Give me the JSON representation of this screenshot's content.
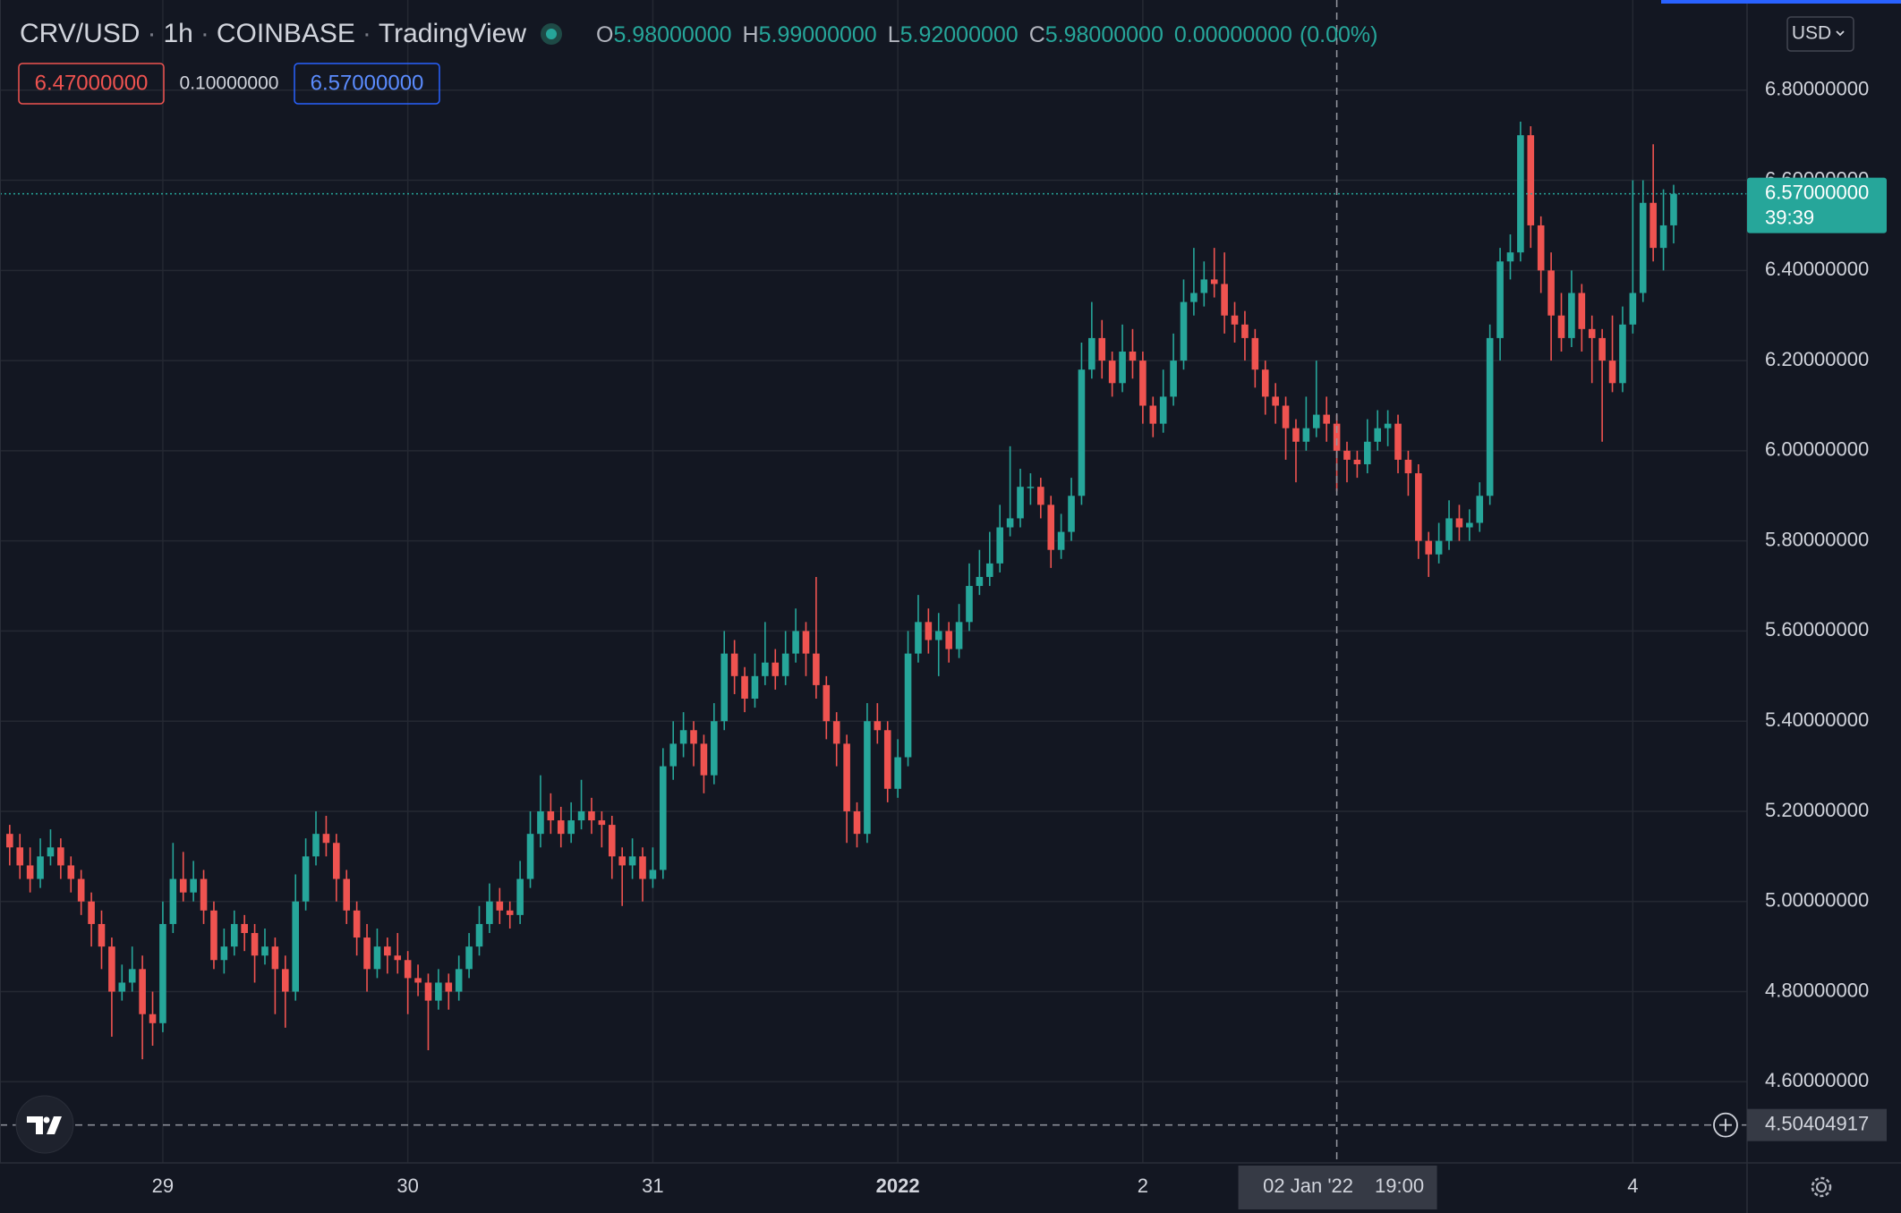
{
  "header": {
    "symbol": "CRV/USD",
    "interval": "1h",
    "exchange": "COINBASE",
    "source": "TradingView",
    "separator": "·",
    "ohlc": {
      "open_label": "O",
      "open": "5.98000000",
      "high_label": "H",
      "high": "5.99000000",
      "low_label": "L",
      "low": "5.92000000",
      "close_label": "C",
      "close": "5.98000000",
      "change": "0.00000000",
      "change_pct": "(0.00%)"
    },
    "sell": "6.47000000",
    "spread": "0.10000000",
    "buy": "6.57000000",
    "currency": "USD"
  },
  "chart_data": {
    "type": "candlestick",
    "ylim": [
      4.42,
      7.0
    ],
    "yticks": [
      {
        "value": 4.6,
        "label": "4.60000000"
      },
      {
        "value": 4.8,
        "label": "4.80000000"
      },
      {
        "value": 5.0,
        "label": "5.00000000"
      },
      {
        "value": 5.2,
        "label": "5.20000000"
      },
      {
        "value": 5.4,
        "label": "5.40000000"
      },
      {
        "value": 5.6,
        "label": "5.60000000"
      },
      {
        "value": 5.8,
        "label": "5.80000000"
      },
      {
        "value": 6.0,
        "label": "6.00000000"
      },
      {
        "value": 6.2,
        "label": "6.20000000"
      },
      {
        "value": 6.4,
        "label": "6.40000000"
      },
      {
        "value": 6.6,
        "label": "6.60000000"
      },
      {
        "value": 6.8,
        "label": "6.80000000"
      }
    ],
    "grid": true,
    "up_color": "#26a69a",
    "down_color": "#ef5350",
    "last_price": {
      "value": 6.57,
      "label": "6.57000000"
    },
    "countdown": "39:39",
    "crosshair_price": 4.50404917,
    "crosshair_date": "02 Jan '22",
    "crosshair_time": "19:00",
    "categories": [
      null,
      null,
      null,
      null,
      null,
      null,
      null,
      null,
      null,
      null,
      null,
      null,
      null,
      null,
      null,
      "29",
      null,
      null,
      null,
      null,
      null,
      null,
      null,
      null,
      null,
      null,
      null,
      null,
      null,
      null,
      null,
      null,
      null,
      null,
      null,
      null,
      null,
      null,
      null,
      "30",
      null,
      null,
      null,
      null,
      null,
      null,
      null,
      null,
      null,
      null,
      null,
      null,
      null,
      null,
      null,
      null,
      null,
      null,
      null,
      null,
      null,
      null,
      null,
      "31",
      null,
      null,
      null,
      null,
      null,
      null,
      null,
      null,
      null,
      null,
      null,
      null,
      null,
      null,
      null,
      null,
      null,
      null,
      null,
      null,
      null,
      null,
      null,
      "2022",
      null,
      null,
      null,
      null,
      null,
      null,
      null,
      null,
      null,
      null,
      null,
      null,
      null,
      null,
      null,
      null,
      null,
      null,
      null,
      null,
      null,
      null,
      null,
      "2",
      null,
      null,
      null,
      null,
      null,
      null,
      null,
      null,
      null,
      null,
      null,
      null,
      null,
      null,
      null,
      null,
      null,
      null,
      null,
      null,
      null,
      null,
      null,
      null,
      null,
      null,
      null,
      null,
      null,
      null,
      null,
      null,
      null,
      null,
      null,
      null,
      null,
      null,
      null,
      null,
      null,
      null,
      null,
      null,
      null,
      null,
      null,
      "4",
      null,
      null,
      null,
      null
    ],
    "candles": [
      [
        5.15,
        5.17,
        5.08,
        5.12
      ],
      [
        5.12,
        5.15,
        5.05,
        5.08
      ],
      [
        5.08,
        5.12,
        5.02,
        5.05
      ],
      [
        5.05,
        5.14,
        5.03,
        5.1
      ],
      [
        5.1,
        5.16,
        5.08,
        5.12
      ],
      [
        5.12,
        5.14,
        5.05,
        5.08
      ],
      [
        5.08,
        5.1,
        5.02,
        5.05
      ],
      [
        5.05,
        5.07,
        4.97,
        5.0
      ],
      [
        5.0,
        5.02,
        4.9,
        4.95
      ],
      [
        4.95,
        4.98,
        4.85,
        4.9
      ],
      [
        4.9,
        4.92,
        4.7,
        4.8
      ],
      [
        4.8,
        4.86,
        4.78,
        4.82
      ],
      [
        4.82,
        4.9,
        4.8,
        4.85
      ],
      [
        4.85,
        4.88,
        4.65,
        4.75
      ],
      [
        4.75,
        4.8,
        4.68,
        4.73
      ],
      [
        4.73,
        5.0,
        4.71,
        4.95
      ],
      [
        4.95,
        5.13,
        4.93,
        5.05
      ],
      [
        5.05,
        5.11,
        5.0,
        5.02
      ],
      [
        5.02,
        5.09,
        5.0,
        5.05
      ],
      [
        5.05,
        5.07,
        4.95,
        4.98
      ],
      [
        4.98,
        5.0,
        4.85,
        4.87
      ],
      [
        4.87,
        4.94,
        4.84,
        4.9
      ],
      [
        4.9,
        4.98,
        4.88,
        4.95
      ],
      [
        4.95,
        4.97,
        4.89,
        4.93
      ],
      [
        4.93,
        4.95,
        4.82,
        4.88
      ],
      [
        4.88,
        4.94,
        4.86,
        4.9
      ],
      [
        4.9,
        4.92,
        4.75,
        4.85
      ],
      [
        4.85,
        4.88,
        4.72,
        4.8
      ],
      [
        4.8,
        5.06,
        4.78,
        5.0
      ],
      [
        5.0,
        5.14,
        4.98,
        5.1
      ],
      [
        5.1,
        5.2,
        5.08,
        5.15
      ],
      [
        5.15,
        5.19,
        5.1,
        5.13
      ],
      [
        5.13,
        5.15,
        5.0,
        5.05
      ],
      [
        5.05,
        5.07,
        4.95,
        4.98
      ],
      [
        4.98,
        5.0,
        4.88,
        4.92
      ],
      [
        4.92,
        4.95,
        4.8,
        4.85
      ],
      [
        4.85,
        4.94,
        4.83,
        4.9
      ],
      [
        4.9,
        4.92,
        4.84,
        4.88
      ],
      [
        4.88,
        4.93,
        4.84,
        4.87
      ],
      [
        4.87,
        4.89,
        4.75,
        4.83
      ],
      [
        4.83,
        4.86,
        4.79,
        4.82
      ],
      [
        4.82,
        4.84,
        4.67,
        4.78
      ],
      [
        4.78,
        4.85,
        4.76,
        4.82
      ],
      [
        4.82,
        4.84,
        4.76,
        4.8
      ],
      [
        4.8,
        4.88,
        4.78,
        4.85
      ],
      [
        4.85,
        4.93,
        4.83,
        4.9
      ],
      [
        4.9,
        4.99,
        4.88,
        4.95
      ],
      [
        4.95,
        5.04,
        4.93,
        5.0
      ],
      [
        5.0,
        5.03,
        4.95,
        4.98
      ],
      [
        4.98,
        5.0,
        4.94,
        4.97
      ],
      [
        4.97,
        5.09,
        4.95,
        5.05
      ],
      [
        5.05,
        5.2,
        5.03,
        5.15
      ],
      [
        5.15,
        5.28,
        5.12,
        5.2
      ],
      [
        5.2,
        5.24,
        5.15,
        5.18
      ],
      [
        5.18,
        5.21,
        5.12,
        5.15
      ],
      [
        5.15,
        5.22,
        5.13,
        5.18
      ],
      [
        5.18,
        5.27,
        5.16,
        5.2
      ],
      [
        5.2,
        5.23,
        5.15,
        5.18
      ],
      [
        5.18,
        5.2,
        5.12,
        5.17
      ],
      [
        5.17,
        5.19,
        5.05,
        5.1
      ],
      [
        5.1,
        5.12,
        4.99,
        5.08
      ],
      [
        5.08,
        5.14,
        5.05,
        5.1
      ],
      [
        5.1,
        5.12,
        5.0,
        5.05
      ],
      [
        5.05,
        5.12,
        5.03,
        5.07
      ],
      [
        5.07,
        5.34,
        5.05,
        5.3
      ],
      [
        5.3,
        5.4,
        5.27,
        5.35
      ],
      [
        5.35,
        5.42,
        5.32,
        5.38
      ],
      [
        5.38,
        5.4,
        5.3,
        5.35
      ],
      [
        5.35,
        5.37,
        5.24,
        5.28
      ],
      [
        5.28,
        5.44,
        5.26,
        5.4
      ],
      [
        5.4,
        5.6,
        5.38,
        5.55
      ],
      [
        5.55,
        5.58,
        5.46,
        5.5
      ],
      [
        5.5,
        5.52,
        5.42,
        5.45
      ],
      [
        5.45,
        5.55,
        5.43,
        5.5
      ],
      [
        5.5,
        5.62,
        5.48,
        5.53
      ],
      [
        5.53,
        5.56,
        5.47,
        5.5
      ],
      [
        5.5,
        5.6,
        5.48,
        5.55
      ],
      [
        5.55,
        5.65,
        5.53,
        5.6
      ],
      [
        5.6,
        5.62,
        5.5,
        5.55
      ],
      [
        5.55,
        5.72,
        5.45,
        5.48
      ],
      [
        5.48,
        5.5,
        5.36,
        5.4
      ],
      [
        5.4,
        5.42,
        5.3,
        5.35
      ],
      [
        5.35,
        5.37,
        5.13,
        5.2
      ],
      [
        5.2,
        5.22,
        5.12,
        5.15
      ],
      [
        5.15,
        5.44,
        5.13,
        5.4
      ],
      [
        5.4,
        5.44,
        5.35,
        5.38
      ],
      [
        5.38,
        5.4,
        5.22,
        5.25
      ],
      [
        5.25,
        5.36,
        5.23,
        5.32
      ],
      [
        5.32,
        5.6,
        5.3,
        5.55
      ],
      [
        5.55,
        5.68,
        5.53,
        5.62
      ],
      [
        5.62,
        5.65,
        5.55,
        5.58
      ],
      [
        5.58,
        5.64,
        5.5,
        5.6
      ],
      [
        5.6,
        5.62,
        5.53,
        5.56
      ],
      [
        5.56,
        5.66,
        5.54,
        5.62
      ],
      [
        5.62,
        5.75,
        5.6,
        5.7
      ],
      [
        5.7,
        5.78,
        5.68,
        5.72
      ],
      [
        5.72,
        5.82,
        5.7,
        5.75
      ],
      [
        5.75,
        5.88,
        5.73,
        5.83
      ],
      [
        5.83,
        6.01,
        5.81,
        5.85
      ],
      [
        5.85,
        5.96,
        5.83,
        5.92
      ],
      [
        5.92,
        5.95,
        5.88,
        5.92
      ],
      [
        5.92,
        5.94,
        5.85,
        5.88
      ],
      [
        5.88,
        5.9,
        5.74,
        5.78
      ],
      [
        5.78,
        5.86,
        5.76,
        5.82
      ],
      [
        5.82,
        5.94,
        5.8,
        5.9
      ],
      [
        5.9,
        6.24,
        5.88,
        6.18
      ],
      [
        6.18,
        6.33,
        6.16,
        6.25
      ],
      [
        6.25,
        6.29,
        6.16,
        6.2
      ],
      [
        6.2,
        6.22,
        6.12,
        6.15
      ],
      [
        6.15,
        6.28,
        6.13,
        6.22
      ],
      [
        6.22,
        6.27,
        6.16,
        6.2
      ],
      [
        6.2,
        6.22,
        6.06,
        6.1
      ],
      [
        6.1,
        6.12,
        6.03,
        6.06
      ],
      [
        6.06,
        6.18,
        6.04,
        6.12
      ],
      [
        6.12,
        6.26,
        6.1,
        6.2
      ],
      [
        6.2,
        6.38,
        6.18,
        6.33
      ],
      [
        6.33,
        6.45,
        6.3,
        6.35
      ],
      [
        6.35,
        6.42,
        6.32,
        6.38
      ],
      [
        6.38,
        6.45,
        6.34,
        6.37
      ],
      [
        6.37,
        6.44,
        6.26,
        6.3
      ],
      [
        6.3,
        6.33,
        6.24,
        6.28
      ],
      [
        6.28,
        6.31,
        6.2,
        6.25
      ],
      [
        6.25,
        6.27,
        6.14,
        6.18
      ],
      [
        6.18,
        6.2,
        6.08,
        6.12
      ],
      [
        6.12,
        6.15,
        6.06,
        6.1
      ],
      [
        6.1,
        6.12,
        5.98,
        6.05
      ],
      [
        6.05,
        6.07,
        5.93,
        6.02
      ],
      [
        6.02,
        6.12,
        6.0,
        6.05
      ],
      [
        6.05,
        6.2,
        6.03,
        6.08
      ],
      [
        6.08,
        6.12,
        6.02,
        6.06
      ],
      [
        6.06,
        6.08,
        5.91,
        6.0
      ],
      [
        6.0,
        6.02,
        5.93,
        5.98
      ],
      [
        5.98,
        6.0,
        5.94,
        5.97
      ],
      [
        5.97,
        6.07,
        5.95,
        6.02
      ],
      [
        6.02,
        6.09,
        6.0,
        6.05
      ],
      [
        6.05,
        6.09,
        6.01,
        6.06
      ],
      [
        6.06,
        6.08,
        5.95,
        5.98
      ],
      [
        5.98,
        6.0,
        5.9,
        5.95
      ],
      [
        5.95,
        5.97,
        5.76,
        5.8
      ],
      [
        5.8,
        5.82,
        5.72,
        5.77
      ],
      [
        5.77,
        5.84,
        5.75,
        5.8
      ],
      [
        5.8,
        5.89,
        5.78,
        5.85
      ],
      [
        5.85,
        5.88,
        5.8,
        5.83
      ],
      [
        5.83,
        5.87,
        5.8,
        5.84
      ],
      [
        5.84,
        5.93,
        5.82,
        5.9
      ],
      [
        5.9,
        6.28,
        5.88,
        6.25
      ],
      [
        6.25,
        6.45,
        6.2,
        6.42
      ],
      [
        6.42,
        6.48,
        6.38,
        6.44
      ],
      [
        6.44,
        6.73,
        6.42,
        6.7
      ],
      [
        6.7,
        6.72,
        6.45,
        6.5
      ],
      [
        6.5,
        6.52,
        6.35,
        6.4
      ],
      [
        6.4,
        6.44,
        6.2,
        6.3
      ],
      [
        6.3,
        6.35,
        6.22,
        6.25
      ],
      [
        6.25,
        6.4,
        6.23,
        6.35
      ],
      [
        6.35,
        6.37,
        6.22,
        6.27
      ],
      [
        6.27,
        6.3,
        6.15,
        6.25
      ],
      [
        6.25,
        6.27,
        6.02,
        6.2
      ],
      [
        6.2,
        6.3,
        6.13,
        6.15
      ],
      [
        6.15,
        6.32,
        6.13,
        6.28
      ],
      [
        6.28,
        6.6,
        6.26,
        6.35
      ],
      [
        6.35,
        6.6,
        6.33,
        6.55
      ],
      [
        6.55,
        6.68,
        6.42,
        6.45
      ],
      [
        6.45,
        6.58,
        6.4,
        6.5
      ],
      [
        6.5,
        6.59,
        6.46,
        6.57
      ]
    ]
  }
}
